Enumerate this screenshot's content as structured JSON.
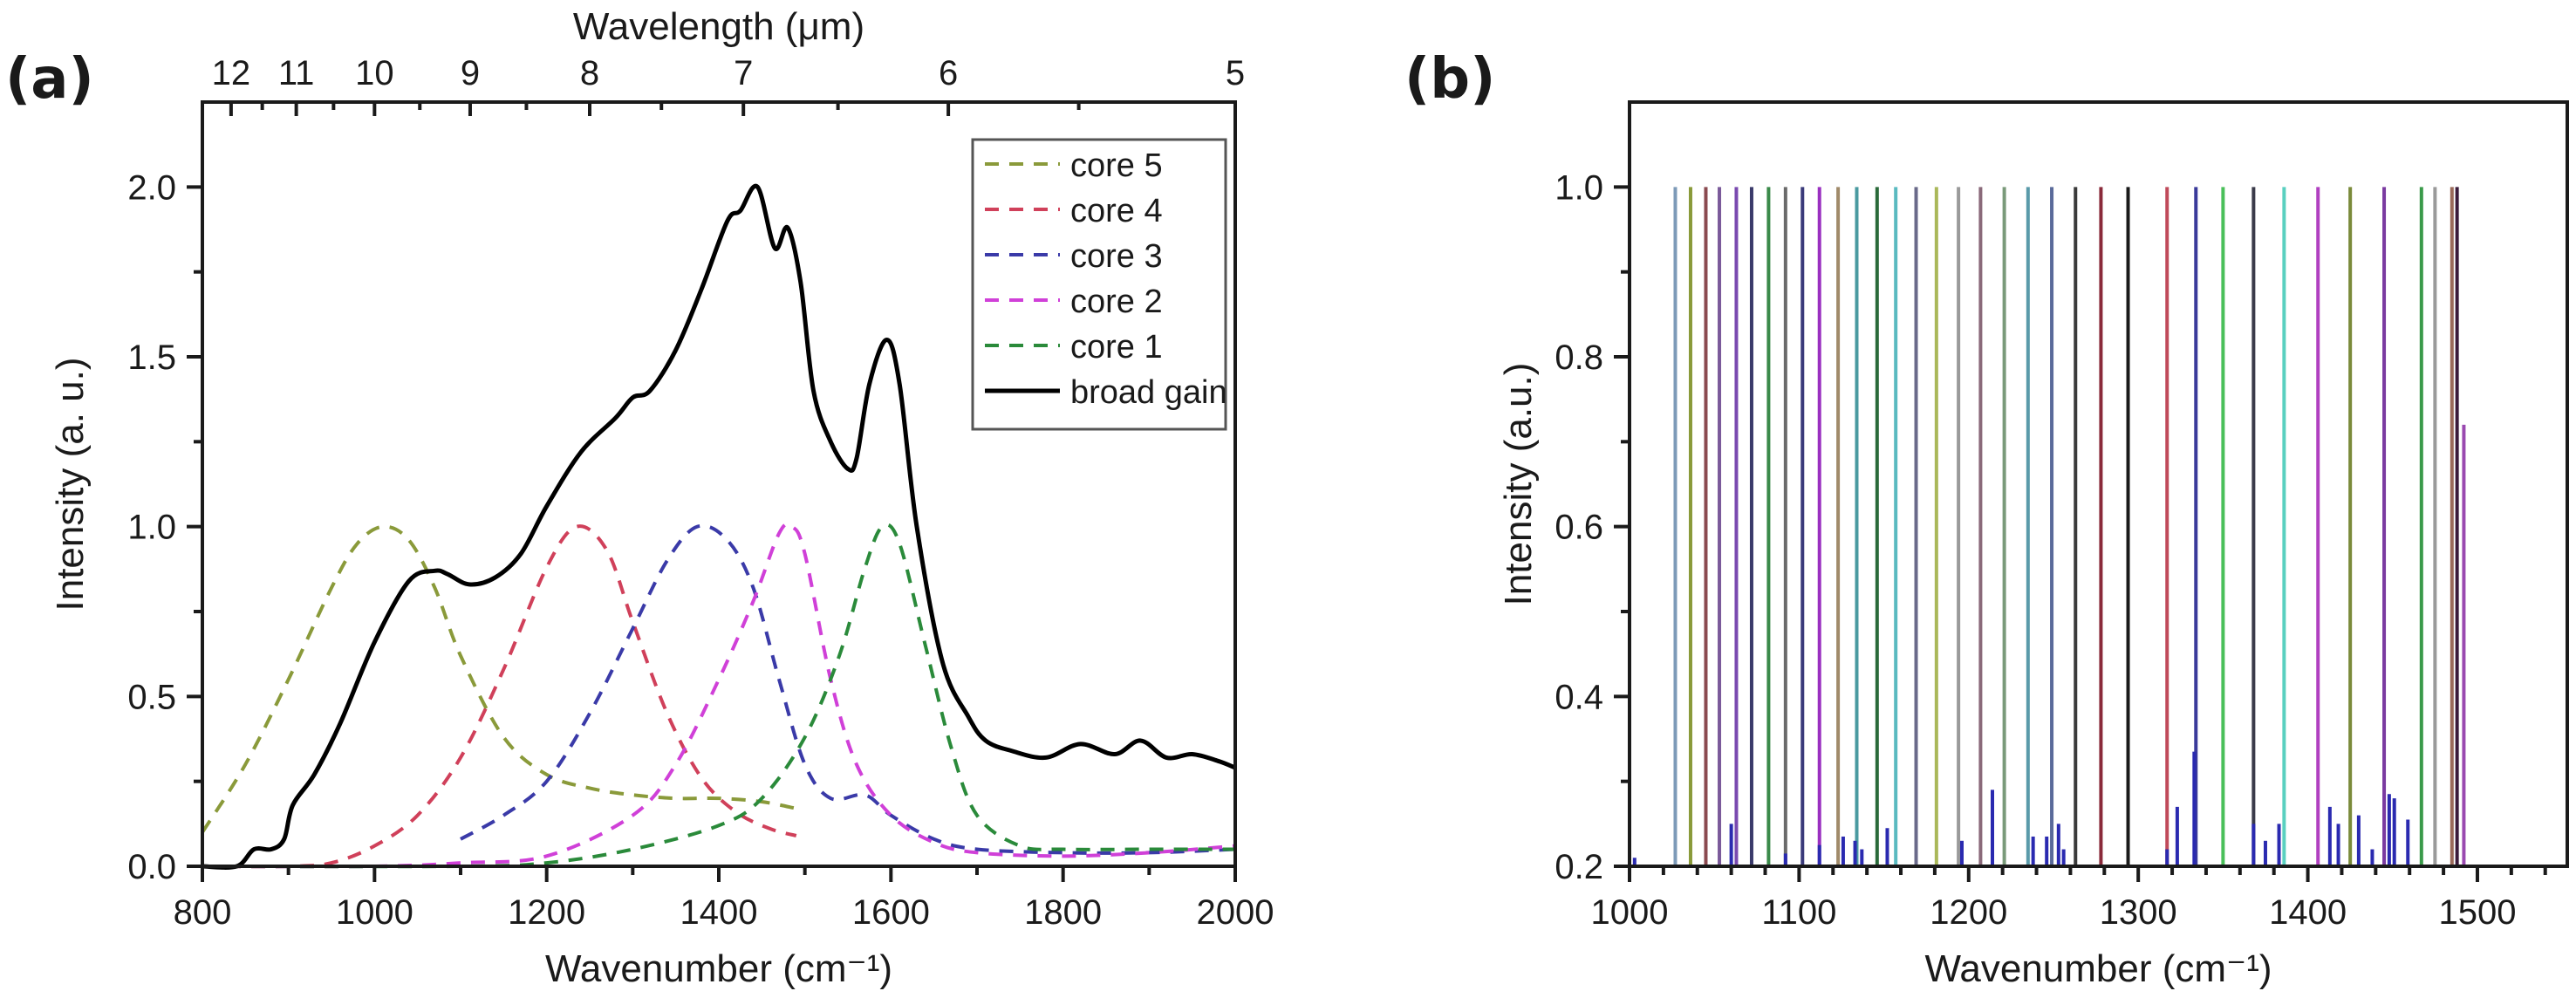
{
  "chart_data": [
    {
      "panel": "(a)",
      "type": "line",
      "title": "",
      "xlabel": "Wavenumber (cm⁻¹)",
      "ylabel": "Intensity (a. u.)",
      "top_xlabel": "Wavelength (μm)",
      "xlim": [
        800,
        2000
      ],
      "ylim": [
        0,
        2.25
      ],
      "x_ticks": [
        800,
        1000,
        1200,
        1400,
        1600,
        1800,
        2000
      ],
      "x_tick_labels": [
        "800",
        "1000",
        "1200",
        "1400",
        "1600",
        "1800",
        "2000"
      ],
      "y_ticks": [
        0.0,
        0.5,
        1.0,
        1.5,
        2.0
      ],
      "y_tick_labels": [
        "0.0",
        "0.5",
        "1.0",
        "1.5",
        "2.0"
      ],
      "top_ticks_um": [
        12,
        11,
        10,
        9,
        8,
        7,
        6,
        5
      ],
      "top_tick_labels": [
        "12",
        "11",
        "10",
        "9",
        "8",
        "7",
        "6",
        "5"
      ],
      "legend_position": "top-right",
      "grid": false,
      "series": [
        {
          "name": "core 5",
          "style": "dashed",
          "color": "#8a9a3a",
          "x": [
            800,
            850,
            900,
            950,
            980,
            1010,
            1040,
            1070,
            1100,
            1150,
            1200,
            1250,
            1300,
            1350,
            1400,
            1450,
            1490
          ],
          "y": [
            0.1,
            0.3,
            0.55,
            0.82,
            0.95,
            1.0,
            0.96,
            0.82,
            0.62,
            0.38,
            0.27,
            0.23,
            0.21,
            0.2,
            0.2,
            0.19,
            0.17
          ]
        },
        {
          "name": "core 4",
          "style": "dashed",
          "color": "#d0405a",
          "x": [
            800,
            900,
            950,
            1000,
            1050,
            1100,
            1150,
            1200,
            1235,
            1270,
            1300,
            1340,
            1380,
            1420,
            1460,
            1490
          ],
          "y": [
            0.0,
            0.0,
            0.01,
            0.06,
            0.15,
            0.32,
            0.58,
            0.88,
            1.0,
            0.93,
            0.72,
            0.45,
            0.26,
            0.16,
            0.11,
            0.09
          ]
        },
        {
          "name": "core 3",
          "style": "dashed",
          "color": "#3a3aa8",
          "x": [
            1100,
            1150,
            1200,
            1250,
            1300,
            1340,
            1375,
            1410,
            1440,
            1470,
            1500,
            1530,
            1570,
            1600,
            1650,
            1700,
            1800,
            1900,
            2000
          ],
          "y": [
            0.08,
            0.15,
            0.25,
            0.45,
            0.7,
            0.9,
            1.0,
            0.96,
            0.82,
            0.55,
            0.3,
            0.2,
            0.21,
            0.15,
            0.08,
            0.05,
            0.04,
            0.04,
            0.05
          ]
        },
        {
          "name": "core 2",
          "style": "dashed",
          "color": "#d040d8",
          "x": [
            800,
            1000,
            1100,
            1200,
            1300,
            1350,
            1400,
            1440,
            1470,
            1485,
            1500,
            1530,
            1560,
            1600,
            1650,
            1700,
            1800,
            1900,
            2000
          ],
          "y": [
            0.0,
            0.0,
            0.01,
            0.03,
            0.15,
            0.3,
            0.55,
            0.78,
            0.98,
            1.0,
            0.92,
            0.55,
            0.3,
            0.15,
            0.07,
            0.04,
            0.03,
            0.04,
            0.06
          ]
        },
        {
          "name": "core 1",
          "style": "dashed",
          "color": "#2a8a3a",
          "x": [
            800,
            1100,
            1200,
            1300,
            1400,
            1450,
            1500,
            1540,
            1570,
            1590,
            1610,
            1640,
            1670,
            1700,
            1750,
            1800,
            1900,
            2000
          ],
          "y": [
            0.0,
            0.0,
            0.01,
            0.05,
            0.12,
            0.2,
            0.38,
            0.62,
            0.88,
            1.0,
            0.95,
            0.65,
            0.35,
            0.15,
            0.06,
            0.05,
            0.05,
            0.05
          ]
        },
        {
          "name": "broad gain",
          "style": "solid",
          "color": "#000000",
          "x": [
            800,
            840,
            860,
            880,
            895,
            905,
            930,
            960,
            1000,
            1040,
            1070,
            1085,
            1110,
            1140,
            1170,
            1200,
            1240,
            1280,
            1300,
            1320,
            1350,
            1380,
            1410,
            1425,
            1445,
            1465,
            1480,
            1495,
            1510,
            1530,
            1550,
            1560,
            1575,
            1595,
            1610,
            1630,
            1660,
            1690,
            1710,
            1740,
            1780,
            1820,
            1860,
            1890,
            1920,
            1950,
            1980,
            2000
          ],
          "y": [
            0.0,
            0.0,
            0.05,
            0.05,
            0.08,
            0.18,
            0.27,
            0.42,
            0.66,
            0.84,
            0.87,
            0.86,
            0.83,
            0.85,
            0.92,
            1.06,
            1.22,
            1.32,
            1.38,
            1.4,
            1.52,
            1.7,
            1.9,
            1.93,
            2.0,
            1.82,
            1.88,
            1.72,
            1.4,
            1.25,
            1.17,
            1.2,
            1.42,
            1.55,
            1.42,
            1.0,
            0.6,
            0.44,
            0.37,
            0.34,
            0.32,
            0.36,
            0.33,
            0.37,
            0.32,
            0.33,
            0.31,
            0.29
          ]
        }
      ]
    },
    {
      "panel": "(b)",
      "type": "bar",
      "subtype": "stick-spectrum",
      "title": "",
      "xlabel": "Wavenumber (cm⁻¹)",
      "ylabel": "Intensity (a.u.)",
      "xlim": [
        1000,
        1553
      ],
      "ylim": [
        0.2,
        1.1
      ],
      "x_ticks": [
        1000,
        1100,
        1200,
        1300,
        1400,
        1500
      ],
      "x_tick_labels": [
        "1000",
        "1100",
        "1200",
        "1300",
        "1400",
        "1500"
      ],
      "y_ticks": [
        0.2,
        0.4,
        0.6,
        0.8,
        1.0
      ],
      "y_tick_labels": [
        "0.2",
        "0.4",
        "0.6",
        "0.8",
        "1.0"
      ],
      "grid": false,
      "lines": [
        {
          "x": 1027,
          "y": 1.0,
          "color": "#7d9ab8"
        },
        {
          "x": 1036,
          "y": 1.0,
          "color": "#8a9a3a"
        },
        {
          "x": 1045,
          "y": 1.0,
          "color": "#8a4a50"
        },
        {
          "x": 1053,
          "y": 1.0,
          "color": "#7a5a9a"
        },
        {
          "x": 1063,
          "y": 1.0,
          "color": "#7a4ab0"
        },
        {
          "x": 1072,
          "y": 1.0,
          "color": "#3a3a6a"
        },
        {
          "x": 1082,
          "y": 1.0,
          "color": "#3a8a4a"
        },
        {
          "x": 1092,
          "y": 1.0,
          "color": "#6a6a6a"
        },
        {
          "x": 1102,
          "y": 1.0,
          "color": "#3a3a7a"
        },
        {
          "x": 1112,
          "y": 1.0,
          "color": "#9a30c0"
        },
        {
          "x": 1123,
          "y": 1.0,
          "color": "#a08a6a"
        },
        {
          "x": 1134,
          "y": 1.0,
          "color": "#4a9aa0"
        },
        {
          "x": 1146,
          "y": 1.0,
          "color": "#2a6a3a"
        },
        {
          "x": 1157,
          "y": 1.0,
          "color": "#5abac0"
        },
        {
          "x": 1169,
          "y": 1.0,
          "color": "#6a6a8a"
        },
        {
          "x": 1181,
          "y": 1.0,
          "color": "#aab85a"
        },
        {
          "x": 1194,
          "y": 1.0,
          "color": "#9a9a9a"
        },
        {
          "x": 1207,
          "y": 1.0,
          "color": "#8a6a7a"
        },
        {
          "x": 1221,
          "y": 1.0,
          "color": "#7a9a7a"
        },
        {
          "x": 1235,
          "y": 1.0,
          "color": "#5a9aaa"
        },
        {
          "x": 1249,
          "y": 1.0,
          "color": "#5a6a9a"
        },
        {
          "x": 1263,
          "y": 1.0,
          "color": "#3a3a3a"
        },
        {
          "x": 1278,
          "y": 1.0,
          "color": "#8a2a3a"
        },
        {
          "x": 1294,
          "y": 1.0,
          "color": "#1a1a1a"
        },
        {
          "x": 1317,
          "y": 1.0,
          "color": "#c04a5a"
        },
        {
          "x": 1334,
          "y": 1.0,
          "color": "#3a3a9a"
        },
        {
          "x": 1350,
          "y": 1.0,
          "color": "#4ac05a"
        },
        {
          "x": 1368,
          "y": 1.0,
          "color": "#3a3a4a"
        },
        {
          "x": 1386,
          "y": 1.0,
          "color": "#5ad0c0"
        },
        {
          "x": 1406,
          "y": 1.0,
          "color": "#b040c0"
        },
        {
          "x": 1425,
          "y": 1.0,
          "color": "#7a8a3a"
        },
        {
          "x": 1445,
          "y": 1.0,
          "color": "#7a3aa0"
        },
        {
          "x": 1467,
          "y": 1.0,
          "color": "#3a9a4a"
        },
        {
          "x": 1475,
          "y": 1.0,
          "color": "#9a9a9a"
        },
        {
          "x": 1485,
          "y": 1.0,
          "color": "#9a6a5a"
        },
        {
          "x": 1488,
          "y": 1.0,
          "color": "#3a1a3a"
        },
        {
          "x": 1492,
          "y": 0.72,
          "color": "#9a4ab0"
        }
      ],
      "small_peaks": [
        {
          "x": 1003,
          "y": 0.21
        },
        {
          "x": 1060,
          "y": 0.25
        },
        {
          "x": 1092,
          "y": 0.215
        },
        {
          "x": 1112,
          "y": 0.225
        },
        {
          "x": 1126,
          "y": 0.235
        },
        {
          "x": 1133,
          "y": 0.23
        },
        {
          "x": 1137,
          "y": 0.22
        },
        {
          "x": 1152,
          "y": 0.245
        },
        {
          "x": 1196,
          "y": 0.23
        },
        {
          "x": 1214,
          "y": 0.29
        },
        {
          "x": 1238,
          "y": 0.235
        },
        {
          "x": 1246,
          "y": 0.235
        },
        {
          "x": 1253,
          "y": 0.25
        },
        {
          "x": 1256,
          "y": 0.22
        },
        {
          "x": 1317,
          "y": 0.22
        },
        {
          "x": 1323,
          "y": 0.27
        },
        {
          "x": 1333,
          "y": 0.335
        },
        {
          "x": 1368,
          "y": 0.25
        },
        {
          "x": 1375,
          "y": 0.23
        },
        {
          "x": 1383,
          "y": 0.25
        },
        {
          "x": 1413,
          "y": 0.27
        },
        {
          "x": 1418,
          "y": 0.25
        },
        {
          "x": 1430,
          "y": 0.26
        },
        {
          "x": 1438,
          "y": 0.22
        },
        {
          "x": 1448,
          "y": 0.285
        },
        {
          "x": 1451,
          "y": 0.28
        },
        {
          "x": 1459,
          "y": 0.255
        }
      ],
      "small_peak_color": "#2a2ab0"
    }
  ]
}
